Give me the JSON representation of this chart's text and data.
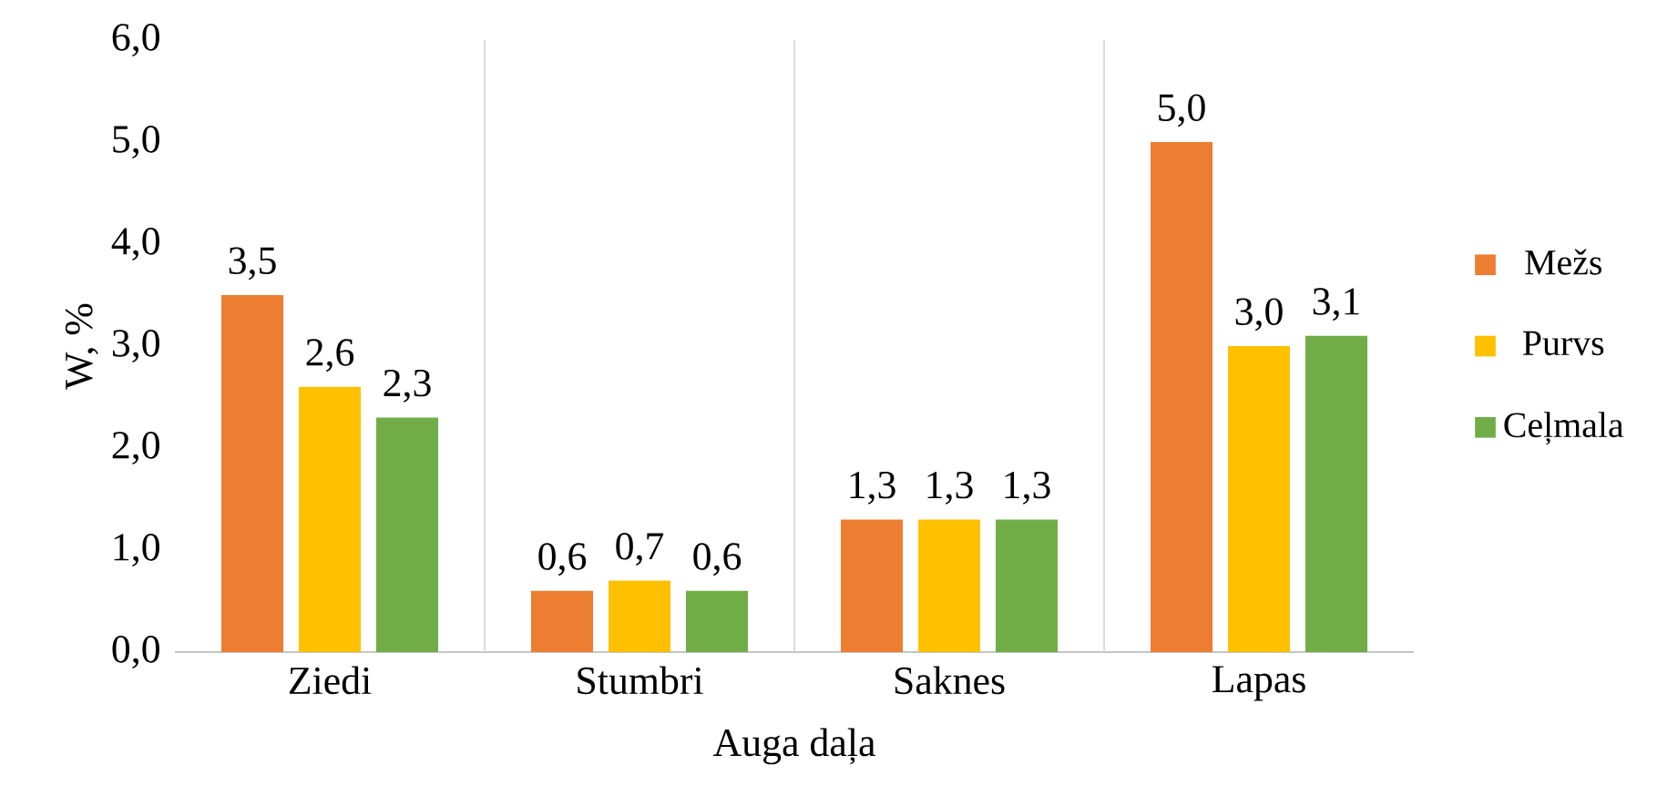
{
  "chart_data": {
    "type": "bar",
    "xlabel": "Auga daļa",
    "ylabel": "W, %",
    "categories": [
      "Ziedi",
      "Stumbri",
      "Saknes",
      "Lapas"
    ],
    "series": [
      {
        "name": "Mežs",
        "color": "#ed7d31",
        "values": [
          3.5,
          0.6,
          1.3,
          5.0
        ],
        "value_labels": [
          "3,5",
          "0,6",
          "1,3",
          "5,0"
        ]
      },
      {
        "name": "Purvs",
        "color": "#ffc000",
        "values": [
          2.6,
          0.7,
          1.3,
          3.0
        ],
        "value_labels": [
          "2,6",
          "0,7",
          "1,3",
          "3,0"
        ]
      },
      {
        "name": "Ceļmala",
        "color": "#70ad47",
        "values": [
          2.3,
          0.6,
          1.3,
          3.1
        ],
        "value_labels": [
          "2,3",
          "0,6",
          "1,3",
          "3,1"
        ]
      }
    ],
    "ylim": [
      0,
      6
    ],
    "yticks": [
      {
        "value": 0,
        "label": "0,0"
      },
      {
        "value": 1,
        "label": "1,0"
      },
      {
        "value": 2,
        "label": "2,0"
      },
      {
        "value": 3,
        "label": "3,0"
      },
      {
        "value": 4,
        "label": "4,0"
      },
      {
        "value": 5,
        "label": "5,0"
      },
      {
        "value": 6,
        "label": "6,0"
      }
    ],
    "grid": "x",
    "legend": "right"
  }
}
